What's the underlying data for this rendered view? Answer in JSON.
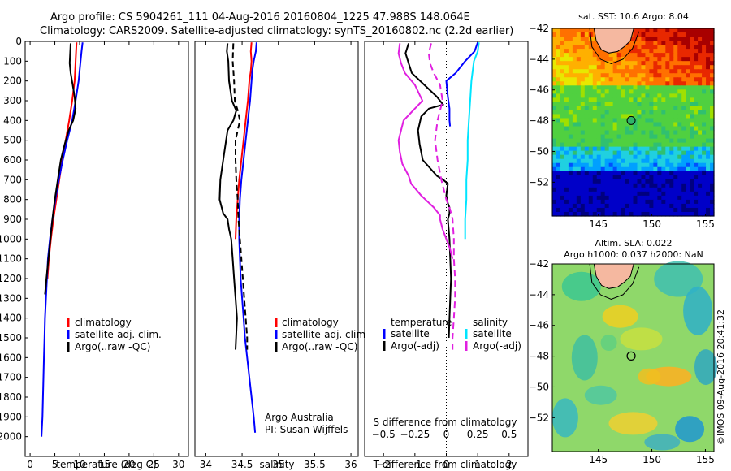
{
  "header": {
    "line1": "Argo profile: CS 5904261_111 04-Aug-2016 20160804_1225 47.988S 148.064E",
    "line2": "Climatology: CARS2009. Satellite-adjusted climatology: synTS_20160802.nc (2.2d earlier)"
  },
  "colors": {
    "climatology": "#ff0000",
    "satellite_adj": "#0000ff",
    "argo": "#000000",
    "satellite_s": "#00e5ff",
    "argo_s": "#e020e0"
  },
  "chart_data": [
    {
      "id": "temperature",
      "type": "line",
      "xlabel": "temperature (deg C)",
      "ylabel": "",
      "xlim": [
        -1,
        32
      ],
      "ylim": [
        2100,
        0
      ],
      "xticks": [
        0,
        5,
        10,
        15,
        20,
        25,
        30
      ],
      "yticks": [
        0,
        100,
        200,
        300,
        400,
        500,
        600,
        700,
        800,
        900,
        1000,
        1100,
        1200,
        1300,
        1400,
        1500,
        1600,
        1700,
        1800,
        1900,
        2000
      ],
      "legend": [
        "climatology",
        "satellite-adj. clim.",
        "Argo(..raw -QC)"
      ],
      "series": [
        {
          "name": "climatology",
          "color": "#ff0000",
          "dash": "",
          "x": [
            9.4,
            9.3,
            9.2,
            9.0,
            8.5,
            7.9,
            7.2,
            6.5,
            5.9,
            5.3,
            4.7,
            4.2,
            3.8,
            3.5
          ],
          "y": [
            5,
            50,
            100,
            200,
            300,
            400,
            500,
            600,
            700,
            800,
            900,
            1000,
            1100,
            1200
          ]
        },
        {
          "name": "satellite-adj. clim.",
          "color": "#0000ff",
          "dash": "",
          "x": [
            10.6,
            10.4,
            10.2,
            9.8,
            9.2,
            8.5,
            7.5,
            6.6,
            5.8,
            5.1,
            4.5,
            4.0,
            3.6,
            3.4,
            3.2,
            3.0,
            2.9,
            2.8,
            2.7,
            2.6,
            2.5,
            2.4,
            2.3
          ],
          "y": [
            5,
            50,
            100,
            200,
            300,
            400,
            500,
            600,
            700,
            800,
            900,
            1000,
            1100,
            1200,
            1300,
            1400,
            1500,
            1600,
            1700,
            1800,
            1900,
            1950,
            2000
          ]
        },
        {
          "name": "Argo(..raw -QC)",
          "color": "#000000",
          "dash": "",
          "x": [
            8.2,
            8.1,
            8.0,
            8.2,
            8.6,
            9.0,
            9.2,
            8.7,
            7.8,
            7.0,
            6.2,
            5.6,
            5.0,
            4.5,
            4.1,
            3.7,
            3.3,
            3.0
          ],
          "y": [
            10,
            60,
            110,
            160,
            220,
            280,
            340,
            400,
            450,
            520,
            600,
            700,
            800,
            900,
            1000,
            1100,
            1200,
            1280
          ]
        }
      ]
    },
    {
      "id": "salinity",
      "type": "line",
      "xlabel": "salinity",
      "ylabel": "",
      "xlim": [
        33.85,
        36.1
      ],
      "ylim": [
        2100,
        0
      ],
      "xticks": [
        34,
        34.5,
        35,
        35.5,
        36
      ],
      "xtick_labels": [
        "34",
        "34.5",
        "35",
        "35.5",
        "36"
      ],
      "legend": [
        "climatology",
        "satellite-adj. clim.",
        "Argo(..raw -QC)"
      ],
      "notes": [
        "Argo Australia",
        "PI: Susan Wijffels"
      ],
      "series": [
        {
          "name": "climatology",
          "color": "#ff0000",
          "dash": "",
          "x": [
            34.63,
            34.62,
            34.63,
            34.62,
            34.6,
            34.58,
            34.55,
            34.52,
            34.49,
            34.46,
            34.44,
            34.42,
            34.41
          ],
          "y": [
            5,
            50,
            100,
            150,
            200,
            300,
            400,
            500,
            600,
            700,
            800,
            900,
            1000
          ]
        },
        {
          "name": "satellite-adj. clim.",
          "color": "#0000ff",
          "dash": "",
          "x": [
            34.7,
            34.69,
            34.66,
            34.64,
            34.63,
            34.61,
            34.58,
            34.55,
            34.52,
            34.49,
            34.47,
            34.46,
            34.46,
            34.47,
            34.48,
            34.5,
            34.52,
            34.54,
            34.57,
            34.6,
            34.63,
            34.66,
            34.68
          ],
          "y": [
            5,
            50,
            100,
            150,
            200,
            300,
            400,
            500,
            600,
            700,
            800,
            900,
            1000,
            1100,
            1200,
            1300,
            1400,
            1500,
            1600,
            1700,
            1800,
            1900,
            1980
          ]
        },
        {
          "name": "Argo(..raw -QC)",
          "color": "#000000",
          "dash": "",
          "x": [
            34.3,
            34.29,
            34.31,
            34.32,
            34.36,
            34.42,
            34.38,
            34.3,
            34.28,
            34.24,
            34.2,
            34.19,
            34.24,
            34.3,
            34.32,
            34.35,
            34.37,
            34.39,
            34.4,
            34.41,
            34.42,
            34.43,
            34.42,
            34.41
          ],
          "y": [
            10,
            50,
            100,
            200,
            300,
            350,
            400,
            450,
            500,
            600,
            700,
            800,
            870,
            900,
            950,
            1000,
            1100,
            1200,
            1250,
            1300,
            1350,
            1400,
            1480,
            1560
          ]
        },
        {
          "name": "",
          "color": "#000000",
          "dash": "7,4",
          "x": [
            34.38,
            34.37,
            34.39,
            34.4,
            34.44,
            34.47,
            34.44,
            34.41,
            34.41,
            34.42,
            34.44,
            34.45,
            34.47,
            34.49,
            34.51,
            34.53,
            34.55,
            34.56,
            34.57,
            34.57
          ],
          "y": [
            10,
            100,
            200,
            300,
            350,
            400,
            450,
            500,
            600,
            700,
            800,
            900,
            1000,
            1100,
            1200,
            1300,
            1400,
            1450,
            1500,
            1560
          ]
        }
      ]
    },
    {
      "id": "differences",
      "type": "line",
      "xlabel": "T difference from climatology",
      "x2label": "S difference from climatology",
      "ylabel": "",
      "xlim": [
        -2.6,
        2.6
      ],
      "ylim": [
        2100,
        0
      ],
      "xticks": [
        -2,
        -1,
        0,
        1,
        2
      ],
      "x2ticks": [
        -0.5,
        -0.25,
        0,
        0.25,
        0.5
      ],
      "x2tick_labels": [
        "-0.5",
        "-0.25",
        "0",
        "0.25",
        "0.5"
      ],
      "x2lim": [
        -0.65,
        0.65
      ],
      "legend_groups": [
        {
          "title": "temperature",
          "items": [
            "satellite",
            "Argo(-adj)"
          ]
        },
        {
          "title": "salinity",
          "items": [
            "satellite",
            "Argo(-adj)"
          ]
        }
      ],
      "series": [
        {
          "name": "temperature satellite",
          "color": "#0000ff",
          "dash": "",
          "x": [
            1.0,
            0.9,
            0.6,
            0.3,
            0.0,
            0.05,
            0.1,
            0.1,
            0.12
          ],
          "y": [
            5,
            50,
            100,
            160,
            200,
            280,
            340,
            400,
            430
          ]
        },
        {
          "name": "temperature Argo(-adj)",
          "color": "#000000",
          "dash": "",
          "x": [
            -1.2,
            -1.3,
            -1.2,
            -1.1,
            -0.7,
            -0.3,
            -0.1,
            -0.55,
            -0.8,
            -0.9,
            -0.85,
            -0.75,
            -0.3,
            -0.1,
            0.05,
            0.0,
            0.05,
            0.1,
            0.1,
            0.05,
            0.1,
            0.15,
            0.1,
            0.08
          ],
          "y": [
            10,
            60,
            110,
            160,
            220,
            280,
            320,
            340,
            380,
            450,
            520,
            600,
            680,
            700,
            720,
            780,
            820,
            840,
            870,
            900,
            1000,
            1200,
            1400,
            1500
          ]
        },
        {
          "name": "salinity satellite",
          "color": "#00e5ff",
          "dash": "",
          "x": [
            0.26,
            0.25,
            0.22,
            0.2,
            0.19,
            0.18,
            0.17,
            0.17,
            0.16,
            0.16,
            0.15,
            0.15,
            0.15
          ],
          "y": [
            5,
            50,
            100,
            200,
            300,
            400,
            500,
            600,
            700,
            800,
            900,
            950,
            1000
          ]
        },
        {
          "name": "salinity Argo(-adj)",
          "color": "#e020e0",
          "dash": "",
          "x": [
            -0.37,
            -0.38,
            -0.36,
            -0.33,
            -0.25,
            -0.19,
            -0.34,
            -0.38,
            -0.37,
            -0.35,
            -0.3,
            -0.28,
            -0.2,
            -0.1,
            -0.05,
            -0.05,
            -0.03,
            0.0,
            0.03,
            0.05
          ],
          "y": [
            10,
            60,
            110,
            160,
            220,
            300,
            400,
            500,
            560,
            620,
            680,
            720,
            780,
            840,
            880,
            900,
            950,
            1000,
            1050,
            1100
          ]
        },
        {
          "name": "",
          "color": "#e020e0",
          "dash": "8,5",
          "x": [
            -0.12,
            -0.14,
            -0.13,
            -0.1,
            -0.05,
            -0.03,
            -0.07,
            -0.09,
            -0.07,
            -0.04,
            0.0,
            0.03,
            0.05,
            0.06,
            0.06,
            0.07,
            0.07,
            0.06,
            0.05,
            0.05
          ],
          "y": [
            10,
            60,
            110,
            160,
            220,
            300,
            400,
            500,
            600,
            700,
            800,
            850,
            900,
            1000,
            1100,
            1200,
            1300,
            1400,
            1500,
            1560
          ]
        }
      ]
    },
    {
      "id": "sst_map",
      "type": "heatmap",
      "title": "sat. SST: 10.6  Argo: 8.04",
      "xlim": [
        140.7,
        155.8
      ],
      "ylim": [
        -54.2,
        -42
      ],
      "xticks": [
        145,
        150,
        155
      ],
      "yticks": [
        -42,
        -44,
        -46,
        -48,
        -50,
        -52
      ],
      "marker": {
        "lon": 148.064,
        "lat": -47.988
      }
    },
    {
      "id": "sla_map",
      "type": "heatmap",
      "title_line1": "Altim. SLA: 0.022",
      "title_line2": "Argo h1000: 0.037 h2000: NaN",
      "xlim": [
        140.7,
        155.8
      ],
      "ylim": [
        -54.2,
        -42
      ],
      "xticks": [
        145,
        150,
        155
      ],
      "yticks": [
        -42,
        -44,
        -46,
        -48,
        -50,
        -52
      ],
      "marker": {
        "lon": 148.064,
        "lat": -47.988
      },
      "credit": "©IMOS 09-Aug-2016 20:41:32"
    }
  ]
}
